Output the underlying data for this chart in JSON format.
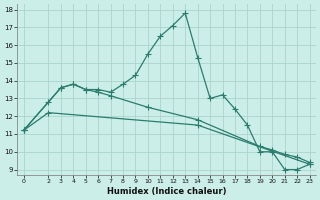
{
  "xlabel": "Humidex (Indice chaleur)",
  "bg_color": "#cceee8",
  "grid_color": "#aad4cc",
  "line_color": "#2a7d6e",
  "xlim": [
    -0.5,
    23.5
  ],
  "ylim": [
    8.7,
    18.3
  ],
  "xticks": [
    0,
    2,
    3,
    4,
    5,
    6,
    7,
    8,
    9,
    10,
    11,
    12,
    13,
    14,
    15,
    16,
    17,
    18,
    19,
    20,
    21,
    22,
    23
  ],
  "yticks": [
    9,
    10,
    11,
    12,
    13,
    14,
    15,
    16,
    17,
    18
  ],
  "line1_x": [
    0,
    2,
    3,
    4,
    5,
    6,
    7,
    8,
    9,
    10,
    11,
    12,
    13,
    14,
    15,
    16,
    17,
    18,
    19,
    20,
    21,
    22,
    23
  ],
  "line1_y": [
    11.2,
    12.8,
    13.6,
    13.8,
    13.5,
    13.5,
    13.35,
    13.8,
    14.3,
    15.5,
    16.5,
    17.1,
    17.8,
    15.3,
    13.0,
    13.2,
    12.4,
    11.5,
    10.0,
    10.0,
    9.0,
    9.0,
    9.3
  ],
  "line2_x": [
    0,
    3,
    4,
    5,
    6,
    7,
    10,
    14,
    19,
    20,
    21,
    22,
    23
  ],
  "line2_y": [
    11.2,
    13.6,
    13.8,
    13.5,
    13.35,
    13.15,
    12.5,
    11.8,
    10.3,
    10.1,
    9.85,
    9.7,
    9.4
  ],
  "line3_x": [
    0,
    2,
    14,
    23
  ],
  "line3_y": [
    11.2,
    12.2,
    11.5,
    9.3
  ]
}
